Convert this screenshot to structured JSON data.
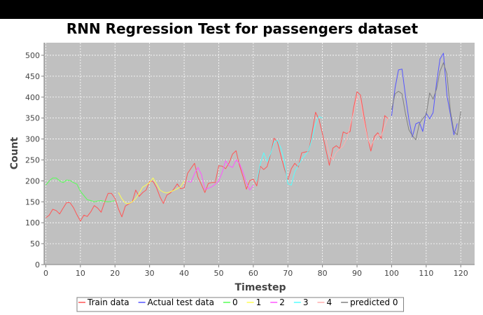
{
  "chart_data": {
    "type": "line",
    "title": "RNN Regression Test for passengers dataset",
    "xlabel": "Timestep",
    "ylabel": "Count",
    "xlim": [
      -0.5,
      124
    ],
    "ylim": [
      0,
      530
    ],
    "xticks": [
      0,
      10,
      20,
      30,
      40,
      50,
      60,
      70,
      80,
      90,
      100,
      110,
      120
    ],
    "yticks": [
      0,
      50,
      100,
      150,
      200,
      250,
      300,
      350,
      400,
      450,
      500
    ],
    "grid": true,
    "background": "#c0c0c0",
    "legend_position": "bottom",
    "series": [
      {
        "name": "Train data",
        "color": "#ff5555",
        "x": [
          0,
          1,
          2,
          3,
          4,
          5,
          6,
          7,
          8,
          9,
          10,
          11,
          12,
          13,
          14,
          15,
          16,
          17,
          18,
          19,
          20,
          21,
          22,
          23,
          24,
          25,
          26,
          27,
          28,
          29,
          30,
          31,
          32,
          33,
          34,
          35,
          36,
          37,
          38,
          39,
          40,
          41,
          42,
          43,
          44,
          45,
          46,
          47,
          48,
          49,
          50,
          51,
          52,
          53,
          54,
          55,
          56,
          57,
          58,
          59,
          60,
          61,
          62,
          63,
          64,
          65,
          66,
          67,
          68,
          69,
          70,
          71,
          72,
          73,
          74,
          75,
          76,
          77,
          78,
          79,
          80,
          81,
          82,
          83,
          84,
          85,
          86,
          87,
          88,
          89,
          90,
          91,
          92,
          93,
          94,
          95,
          96,
          97,
          98,
          99
        ],
        "values": [
          112,
          118,
          132,
          129,
          121,
          135,
          148,
          148,
          136,
          119,
          104,
          118,
          115,
          126,
          141,
          135,
          125,
          149,
          170,
          170,
          158,
          133,
          114,
          140,
          145,
          150,
          178,
          163,
          172,
          178,
          199,
          199,
          184,
          162,
          146,
          166,
          171,
          180,
          193,
          181,
          183,
          218,
          230,
          242,
          209,
          191,
          172,
          194,
          196,
          196,
          236,
          235,
          229,
          243,
          264,
          272,
          237,
          211,
          180,
          201,
          204,
          188,
          235,
          227,
          234,
          264,
          302,
          293,
          259,
          229,
          203,
          229,
          242,
          233,
          267,
          269,
          270,
          315,
          364,
          347,
          312,
          274,
          237,
          278,
          284,
          277,
          317,
          313,
          318,
          374,
          413,
          405,
          355,
          306,
          271,
          306,
          315,
          301,
          356,
          348
        ]
      },
      {
        "name": "Actual test data",
        "color": "#5555ff",
        "x": [
          100,
          101,
          102,
          103,
          104,
          105,
          106,
          107,
          108,
          109,
          110,
          111,
          112,
          113,
          114,
          115,
          116,
          117,
          118,
          119
        ],
        "values": [
          355,
          422,
          465,
          467,
          404,
          347,
          305,
          336,
          340,
          318,
          362,
          348,
          363,
          435,
          491,
          505,
          404,
          359,
          310,
          337
        ]
      },
      {
        "name": "0",
        "color": "#55ff55",
        "x": [
          0,
          1,
          2,
          3,
          4,
          5,
          6,
          7,
          8,
          9,
          10,
          11,
          12,
          13,
          14,
          15,
          16,
          17,
          18,
          19,
          20
        ],
        "values": [
          190,
          200,
          207,
          207,
          200,
          196,
          202,
          201,
          196,
          192,
          175,
          165,
          155,
          153,
          150,
          152,
          153,
          151,
          150,
          151,
          153
        ]
      },
      {
        "name": "1",
        "color": "#ffff55",
        "x": [
          21,
          22,
          23,
          24,
          25,
          26,
          27,
          28,
          29,
          30,
          31,
          32,
          33,
          34,
          35,
          36,
          37,
          38,
          39,
          40
        ],
        "values": [
          172,
          157,
          147,
          146,
          150,
          158,
          170,
          185,
          190,
          196,
          207,
          193,
          178,
          173,
          171,
          174,
          177,
          181,
          186,
          200
        ]
      },
      {
        "name": "2",
        "color": "#ff55ff",
        "x": [
          41,
          42,
          43,
          44,
          45,
          46,
          47,
          48,
          49,
          50,
          51,
          52,
          53,
          54,
          55,
          56,
          57,
          58,
          59,
          60
        ],
        "values": [
          199,
          197,
          217,
          232,
          215,
          180,
          182,
          186,
          192,
          200,
          220,
          248,
          236,
          232,
          250,
          242,
          221,
          196,
          178,
          190
        ]
      },
      {
        "name": "3",
        "color": "#55ffff",
        "x": [
          61,
          62,
          63,
          64,
          65,
          66,
          67,
          68,
          69,
          70,
          71,
          72,
          73,
          74,
          75,
          76,
          77,
          78,
          79,
          80
        ],
        "values": [
          199,
          240,
          267,
          246,
          265,
          292,
          297,
          278,
          246,
          193,
          190,
          222,
          237,
          252,
          262,
          272,
          302,
          335,
          354,
          350
        ]
      },
      {
        "name": "4",
        "color": "#ffafaf",
        "x": [
          81,
          82,
          83,
          84,
          85,
          86,
          87,
          88,
          89,
          90,
          91,
          92,
          93,
          94,
          95,
          96,
          97,
          98,
          99
        ],
        "values": [
          300,
          262,
          251,
          268,
          276,
          283,
          300,
          331,
          363,
          404,
          391,
          345,
          303,
          282,
          299,
          311,
          307,
          330,
          351
        ]
      },
      {
        "name": "predicted 0",
        "color": "#808080",
        "x": [
          100,
          101,
          102,
          103,
          104,
          105,
          106,
          107,
          108,
          109,
          110,
          111,
          112,
          113,
          114,
          115,
          116,
          117,
          118,
          119,
          120
        ],
        "values": [
          370,
          408,
          414,
          408,
          361,
          322,
          308,
          298,
          336,
          349,
          358,
          410,
          395,
          420,
          462,
          482,
          455,
          367,
          318,
          310,
          366
        ]
      }
    ]
  }
}
